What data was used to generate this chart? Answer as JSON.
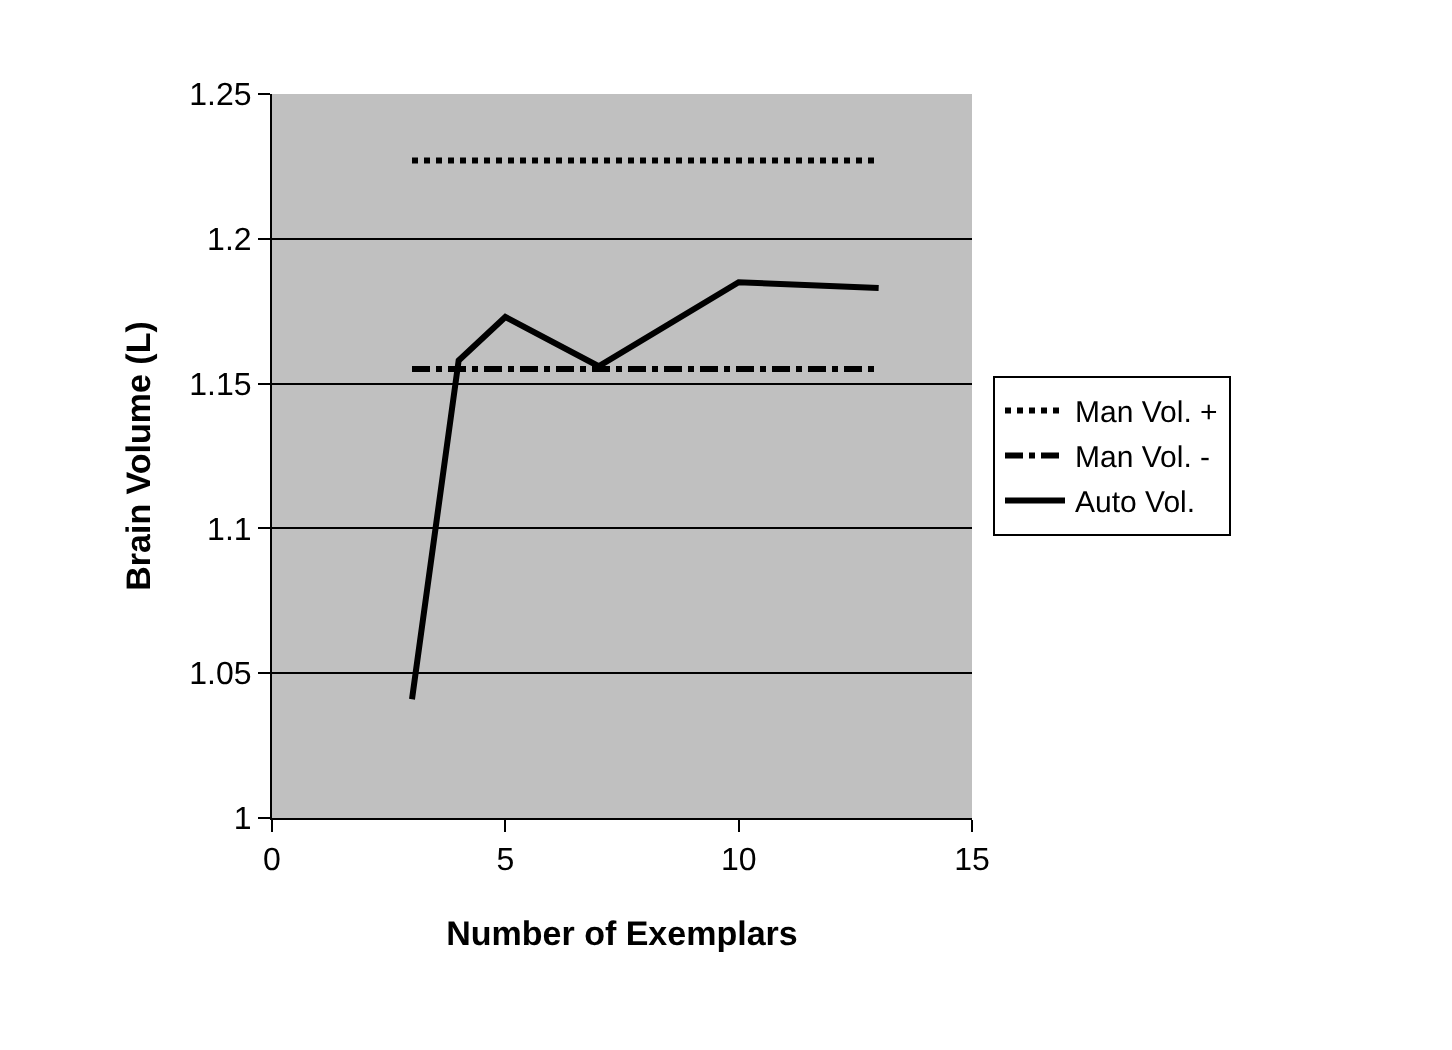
{
  "chart_data": {
    "type": "line",
    "xlabel": "Number of Exemplars",
    "ylabel": "Brain Volume (L)",
    "xlim": [
      0,
      15
    ],
    "xticks": [
      0,
      5,
      10,
      15
    ],
    "ylim": [
      1,
      1.25
    ],
    "yticks": [
      1,
      1.05,
      1.1,
      1.15,
      1.2,
      1.25
    ],
    "grid": "y",
    "legend": "right",
    "marker": "none",
    "series": [
      {
        "name": "Man Vol. +",
        "color": "#000000",
        "line_style": "dotted",
        "x": [
          3,
          13
        ],
        "values": [
          1.227,
          1.227
        ]
      },
      {
        "name": "Man Vol. -",
        "color": "#000000",
        "line_style": "dashed",
        "x": [
          3,
          13
        ],
        "values": [
          1.155,
          1.155
        ]
      },
      {
        "name": "Auto Vol.",
        "color": "#000000",
        "line_style": "solid",
        "x": [
          3,
          4,
          5,
          7,
          10,
          13
        ],
        "values": [
          1.041,
          1.158,
          1.173,
          1.156,
          1.185,
          1.183
        ]
      }
    ]
  }
}
